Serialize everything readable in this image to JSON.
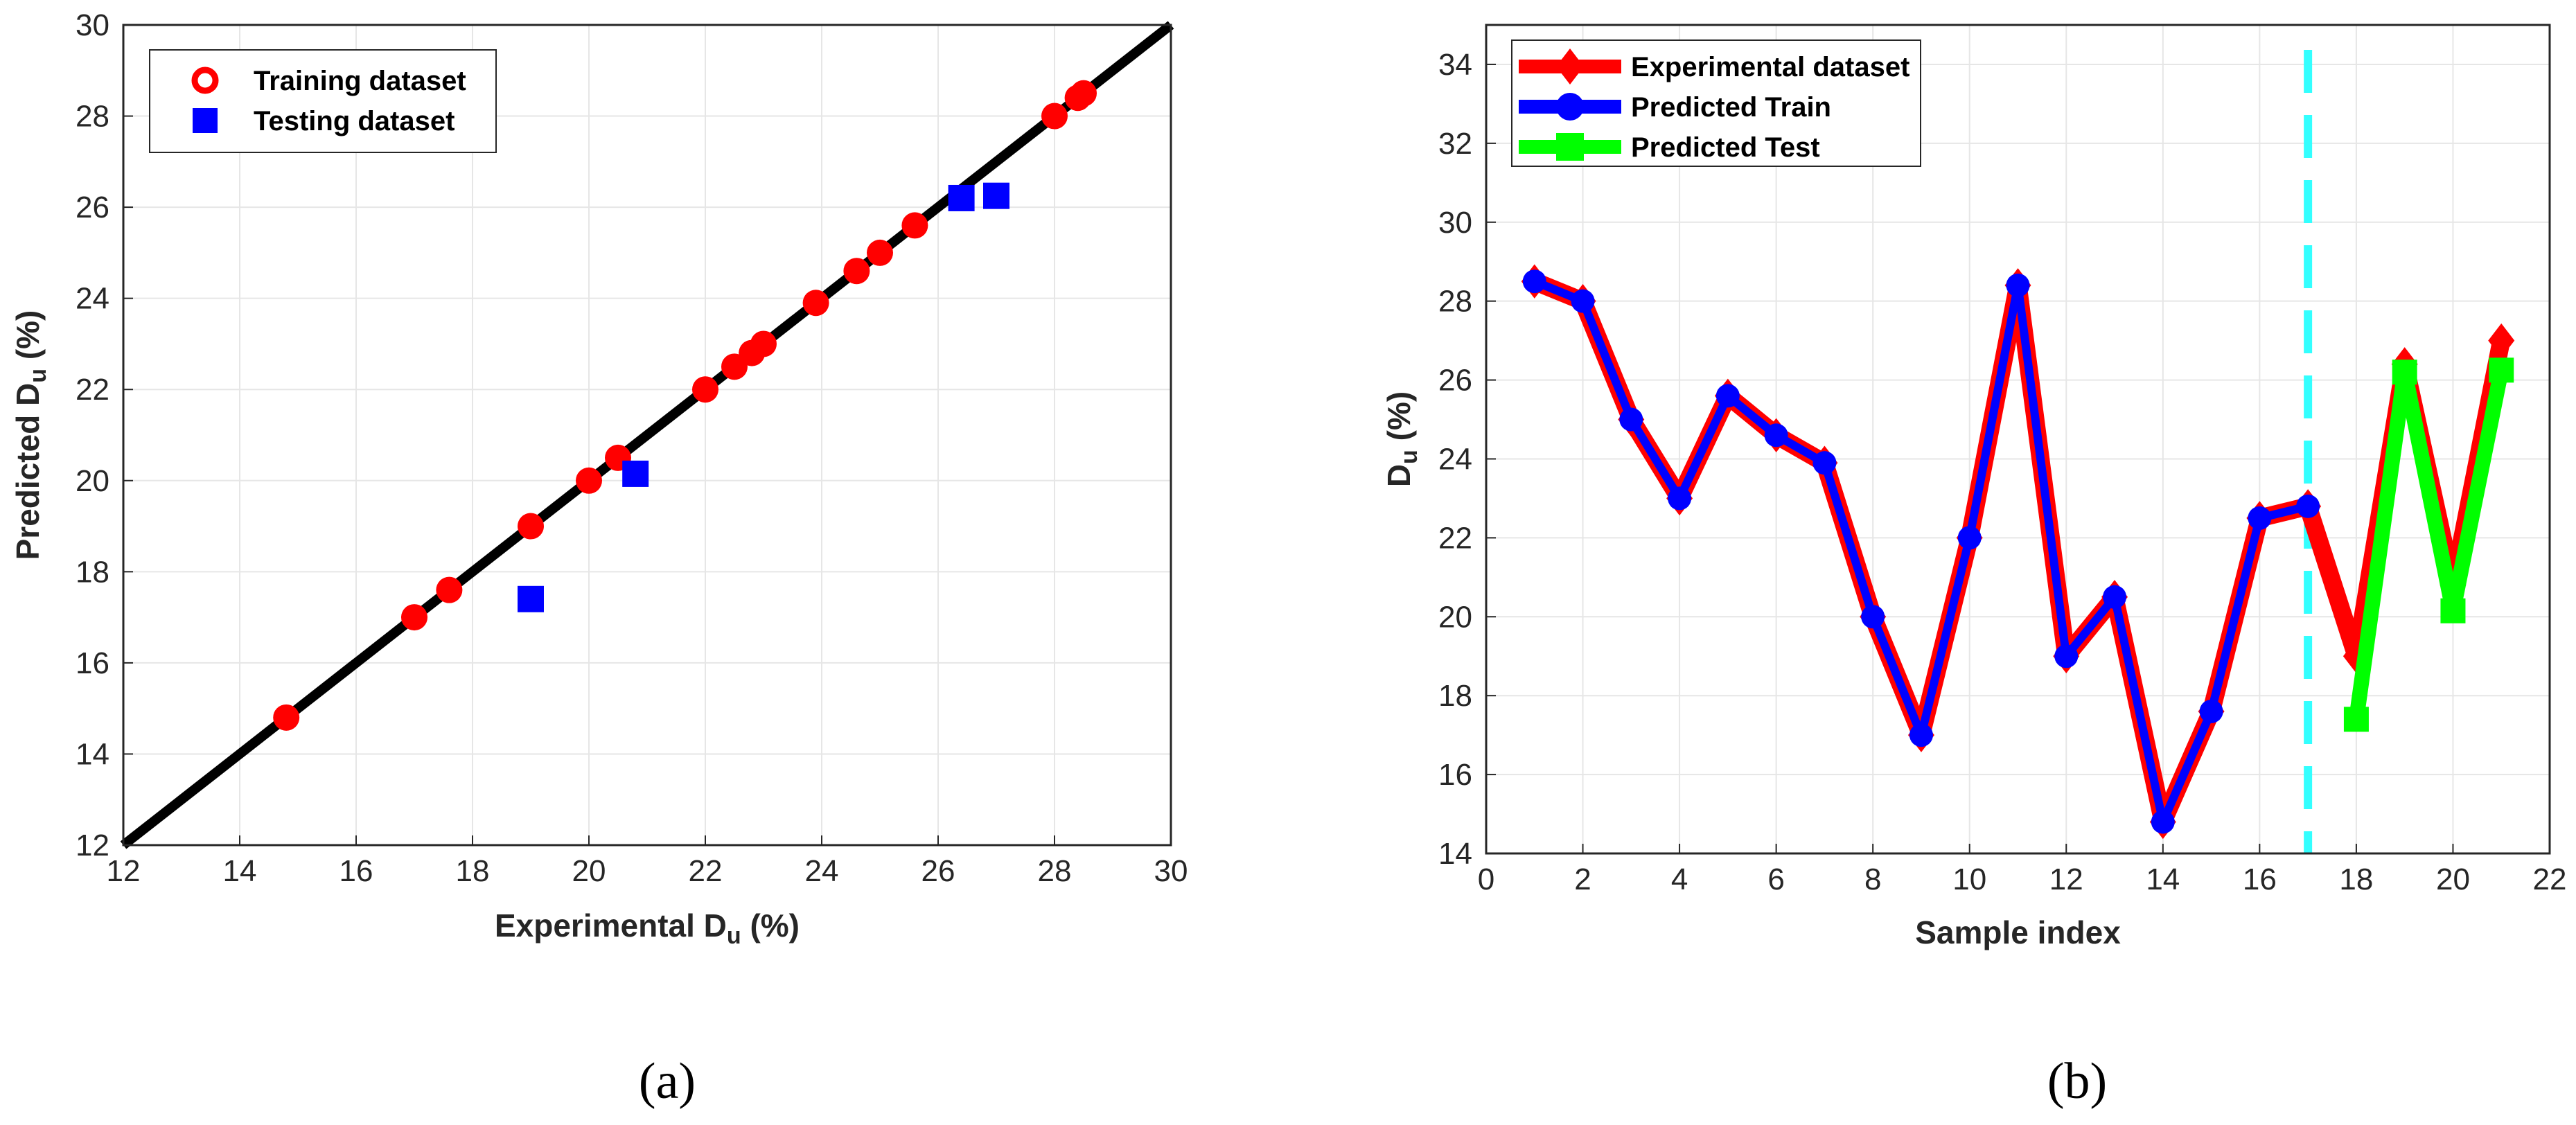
{
  "colors": {
    "training": "#ff0000",
    "testing": "#0000ff",
    "identity_line": "#000000",
    "experimental": "#ff0000",
    "predicted_train": "#0000ff",
    "predicted_test": "#00ff00",
    "split_line": "#33ffff",
    "grid": "#e6e6e6"
  },
  "captions": [
    "(a)",
    "(b)"
  ],
  "chart_data": [
    {
      "type": "scatter",
      "panel": "(a)",
      "xlabel": {
        "base": "Experimental D",
        "sub": "u",
        "suffix": " (%)"
      },
      "ylabel": {
        "base": "Predicted D",
        "sub": "u",
        "suffix": " (%)"
      },
      "xlim": [
        12,
        30
      ],
      "ylim": [
        12,
        30
      ],
      "xticks": [
        "12",
        "14",
        "16",
        "18",
        "20",
        "22",
        "24",
        "26",
        "28",
        "30"
      ],
      "yticks": [
        "12",
        "14",
        "16",
        "18",
        "20",
        "22",
        "24",
        "26",
        "28",
        "30"
      ],
      "grid": true,
      "legend_position": "top-left",
      "identity_line": [
        [
          12,
          12
        ],
        [
          30,
          30
        ]
      ],
      "series": [
        {
          "name": "Training dataset",
          "marker": "circle",
          "points": [
            [
              14.8,
              14.8
            ],
            [
              17.0,
              17.0
            ],
            [
              17.6,
              17.6
            ],
            [
              19.0,
              19.0
            ],
            [
              20.0,
              20.0
            ],
            [
              20.5,
              20.5
            ],
            [
              22.0,
              22.0
            ],
            [
              22.5,
              22.5
            ],
            [
              22.8,
              22.8
            ],
            [
              23.0,
              23.0
            ],
            [
              23.9,
              23.9
            ],
            [
              24.6,
              24.6
            ],
            [
              25.0,
              25.0
            ],
            [
              25.6,
              25.6
            ],
            [
              28.0,
              28.0
            ],
            [
              28.4,
              28.4
            ],
            [
              28.5,
              28.5
            ]
          ]
        },
        {
          "name": "Testing  dataset",
          "marker": "square",
          "points": [
            [
              19.0,
              17.4
            ],
            [
              20.8,
              20.15
            ],
            [
              26.4,
              26.2
            ],
            [
              27.0,
              26.25
            ]
          ]
        }
      ]
    },
    {
      "type": "line",
      "panel": "(b)",
      "xlabel": {
        "base": "Sample index"
      },
      "ylabel": {
        "base": "D",
        "sub": "u",
        "suffix": " (%)"
      },
      "xlim": [
        0,
        22
      ],
      "ylim": [
        14,
        35
      ],
      "xticks": [
        "0",
        "2",
        "4",
        "6",
        "8",
        "10",
        "12",
        "14",
        "16",
        "18",
        "20",
        "22"
      ],
      "yticks": [
        "14",
        "16",
        "18",
        "20",
        "22",
        "24",
        "26",
        "28",
        "30",
        "32",
        "34"
      ],
      "grid": true,
      "legend_position": "top-left",
      "split_index": 17,
      "series": [
        {
          "name": "Experimental dataset",
          "marker": "diamond",
          "x": [
            1,
            2,
            3,
            4,
            5,
            6,
            7,
            8,
            9,
            10,
            11,
            12,
            13,
            14,
            15,
            16,
            17,
            18,
            19,
            20,
            21
          ],
          "y": [
            28.5,
            28.0,
            25.0,
            23.0,
            25.6,
            24.6,
            23.9,
            20.0,
            17.0,
            22.0,
            28.4,
            19.0,
            20.5,
            14.8,
            17.6,
            22.5,
            22.8,
            19.0,
            26.4,
            20.8,
            27.0
          ]
        },
        {
          "name": "Predicted Train",
          "marker": "circle",
          "x": [
            1,
            2,
            3,
            4,
            5,
            6,
            7,
            8,
            9,
            10,
            11,
            12,
            13,
            14,
            15,
            16,
            17
          ],
          "y": [
            28.5,
            28.0,
            25.0,
            23.0,
            25.6,
            24.6,
            23.9,
            20.0,
            17.0,
            22.0,
            28.4,
            19.0,
            20.5,
            14.8,
            17.6,
            22.5,
            22.8
          ]
        },
        {
          "name": "Predicted Test",
          "marker": "square",
          "x": [
            18,
            19,
            20,
            21
          ],
          "y": [
            17.4,
            26.2,
            20.15,
            26.25
          ]
        }
      ]
    }
  ]
}
